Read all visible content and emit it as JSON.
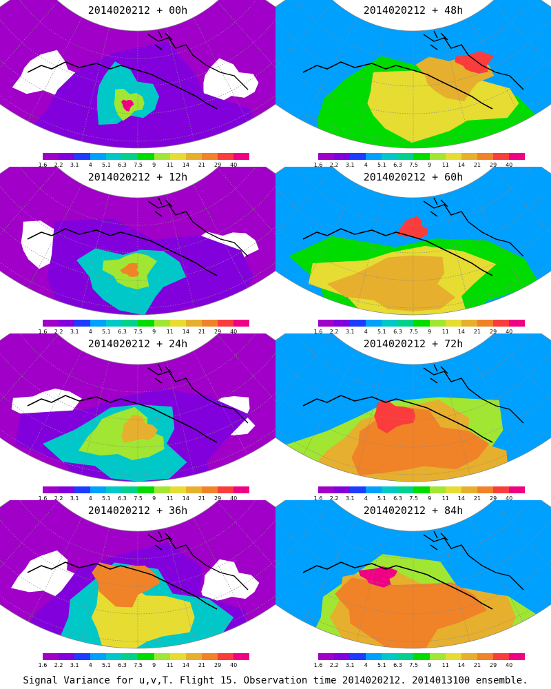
{
  "footer": "Signal Variance for u,v,T. Flight 15. Observation time 2014020212. 2014013100 ensemble.",
  "colorbar": {
    "colors": [
      "#a000c8",
      "#8200dc",
      "#1e3cff",
      "#00a0ff",
      "#00c8c8",
      "#00d28c",
      "#00dc00",
      "#a0e632",
      "#e6dc32",
      "#e6af2d",
      "#f08228",
      "#fa3c3c",
      "#f00082"
    ],
    "labels": [
      "1.6",
      "2.2",
      "3.1",
      "4",
      "5.1",
      "6.3",
      "7.5",
      "9",
      "11",
      "14",
      "21",
      "29",
      "40"
    ]
  },
  "panels": [
    {
      "title": "2014020212 + 00h",
      "level": 0
    },
    {
      "title": "2014020212 + 48h",
      "level": 4
    },
    {
      "title": "2014020212 + 12h",
      "level": 1
    },
    {
      "title": "2014020212 + 60h",
      "level": 5
    },
    {
      "title": "2014020212 + 24h",
      "level": 2
    },
    {
      "title": "2014020212 + 72h",
      "level": 6
    },
    {
      "title": "2014020212 + 36h",
      "level": 3
    },
    {
      "title": "2014020212 + 84h",
      "level": 7
    }
  ]
}
